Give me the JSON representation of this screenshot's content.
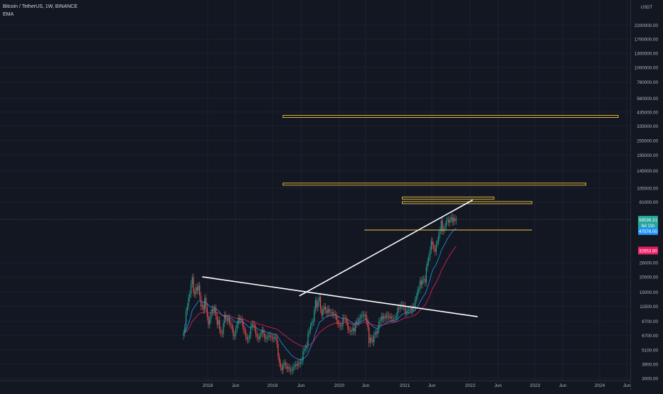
{
  "header": {
    "symbol_line": "Bitcoin / TetherUS, 1W, BINANCE",
    "indicator": "EMA"
  },
  "chart_data": {
    "type": "candlestick",
    "scale": "log",
    "currency_label": "USDT",
    "grid": true,
    "price_ticks": [
      2200000.0,
      1700000.0,
      1300000.0,
      1000000.0,
      760000.0,
      560000.0,
      435000.0,
      335000.0,
      255000.0,
      195000.0,
      145000.0,
      105000.0,
      81000.0,
      26000.0,
      20000.0,
      15000.0,
      11500.0,
      8700.0,
      6700.0,
      5100.0,
      3900.0,
      3000.0
    ],
    "time_ticks": [
      "2018",
      "Jun",
      "2019",
      "Jun",
      "2020",
      "Jun",
      "2021",
      "Jun",
      "2022",
      "Jun",
      "2023",
      "Jun",
      "2024",
      "Jun"
    ],
    "price_badges": [
      {
        "id": "last",
        "lines": [
          "58536.31",
          "6d 11h"
        ],
        "value": 58536.31,
        "color": "#26a69a"
      },
      {
        "id": "ema-fast",
        "lines": [
          "47076.00"
        ],
        "value": 47076.0,
        "color": "#2196f3"
      },
      {
        "id": "ema-slow",
        "lines": [
          "32653.80"
        ],
        "value": 32653.8,
        "color": "#e91e63"
      }
    ],
    "last_price": 58536.31,
    "candles_weekly_close": [
      7000,
      7800,
      10500,
      11500,
      13500,
      14500,
      17500,
      19800,
      15000,
      14500,
      16500,
      15500,
      17000,
      14000,
      11500,
      11800,
      10800,
      13500,
      11300,
      9500,
      8200,
      9000,
      10200,
      11000,
      10500,
      11200,
      9600,
      8200,
      8900,
      7400,
      7000,
      6900,
      8400,
      9800,
      9200,
      8800,
      9300,
      8400,
      8100,
      7600,
      6600,
      6700,
      7600,
      8200,
      9300,
      8900,
      9100,
      8500,
      7500,
      7300,
      6500,
      6200,
      6300,
      6700,
      7900,
      8300,
      8200,
      7800,
      6900,
      6500,
      6300,
      6600,
      6900,
      7400,
      7000,
      6400,
      6300,
      6500,
      6600,
      6700,
      6500,
      6400,
      6300,
      6500,
      6500,
      5700,
      4500,
      4000,
      3700,
      3500,
      3900,
      4000,
      3800,
      3600,
      3700,
      3600,
      3450,
      3500,
      3700,
      3800,
      3900,
      3800,
      4000,
      3950,
      4100,
      4200,
      5000,
      5200,
      5300,
      5600,
      7000,
      7300,
      8000,
      8500,
      8700,
      10800,
      12900,
      11300,
      12500,
      13800,
      11000,
      9800,
      10800,
      11500,
      10700,
      10200,
      11000,
      10300,
      10200,
      10300,
      9900,
      10000,
      9700,
      8900,
      8300,
      8200,
      7900,
      8000,
      9300,
      9200,
      9100,
      8600,
      7500,
      7400,
      7200,
      7300,
      7700,
      7200,
      8300,
      8700,
      8600,
      9200,
      9400,
      9800,
      9900,
      9600,
      9800,
      8700,
      7800,
      5800,
      6400,
      6200,
      5900,
      6800,
      7100,
      6900,
      7500,
      8700,
      8800,
      9600,
      9100,
      9500,
      9300,
      9800,
      9700,
      9300,
      9500,
      9200,
      9100,
      9200,
      9300,
      9600,
      11200,
      11000,
      11600,
      11900,
      11500,
      11700,
      10200,
      10400,
      10700,
      10800,
      11000,
      10600,
      11500,
      11300,
      13100,
      13800,
      15500,
      16000,
      18600,
      17300,
      19000,
      19200,
      18000,
      23800,
      26500,
      29000,
      33000,
      39000,
      36000,
      34000,
      32000,
      37000,
      39000,
      44000,
      48000,
      57000,
      47000,
      49000,
      51000,
      57000,
      58000,
      55000,
      59000,
      61000,
      56000,
      60000,
      57000,
      58536.31
    ],
    "ema_fast_last": 47076.0,
    "ema_slow_last": 32653.8,
    "levels": [
      {
        "id": "level-400k",
        "price": 400000,
        "from": "2019-03",
        "to": "2024-05"
      },
      {
        "id": "level-113k",
        "price": 113000,
        "from": "2019-03",
        "to": "2023-11"
      },
      {
        "id": "level-87k",
        "price": 87000,
        "from": "2021-01",
        "to": "2022-06"
      },
      {
        "id": "level-80k",
        "price": 80000,
        "from": "2021-01",
        "to": "2023-01"
      },
      {
        "id": "level-48k",
        "price": 48000,
        "from": "2020-06",
        "to": "2023-01"
      }
    ],
    "trendlines": [
      {
        "id": "trendline-descending",
        "from": {
          "date": "2017-12",
          "price": 20000
        },
        "to": {
          "date": "2022-03",
          "price": 9500
        }
      },
      {
        "id": "trendline-ascending",
        "from": {
          "date": "2019-06",
          "price": 14000
        },
        "to": {
          "date": "2022-02",
          "price": 84000
        }
      }
    ]
  }
}
